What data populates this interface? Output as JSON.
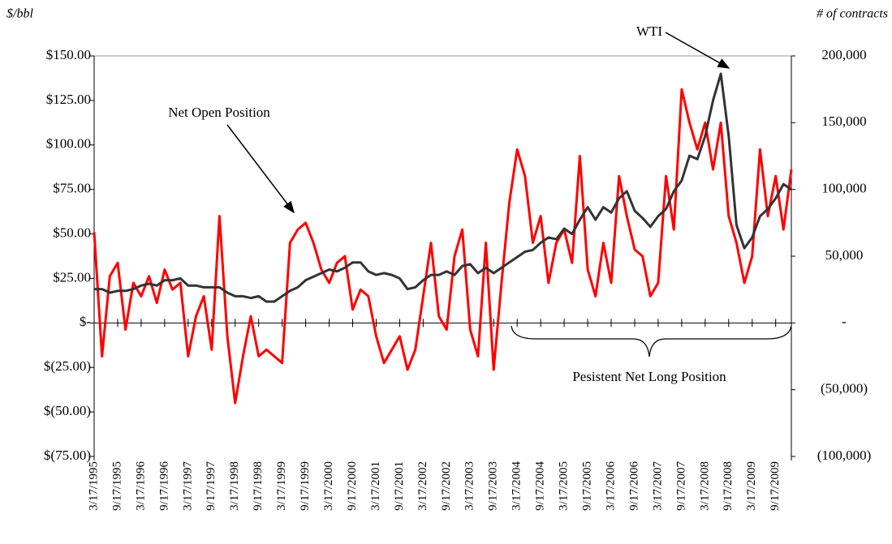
{
  "chart_data": {
    "type": "line",
    "y_label": "$/bbl",
    "y2_label": "# of contracts",
    "annotations": [
      "Pesistent Net Long Position"
    ],
    "categories": [
      "3/17/1995",
      null,
      null,
      "9/17/1995",
      null,
      null,
      "3/17/1996",
      null,
      null,
      "9/17/1996",
      null,
      null,
      "3/17/1997",
      null,
      null,
      "9/17/1997",
      null,
      null,
      "3/17/1998",
      null,
      null,
      "9/17/1998",
      null,
      null,
      "3/17/1999",
      null,
      null,
      "9/17/1999",
      null,
      null,
      "3/17/2000",
      null,
      null,
      "9/17/2000",
      null,
      null,
      "3/17/2001",
      null,
      null,
      "9/17/2001",
      null,
      null,
      "3/17/2002",
      null,
      null,
      "9/17/2002",
      null,
      null,
      "3/17/2003",
      null,
      null,
      "9/17/2003",
      null,
      null,
      "3/17/2004",
      null,
      null,
      "9/17/2004",
      null,
      null,
      "3/17/2005",
      null,
      null,
      "9/17/2005",
      null,
      null,
      "3/17/2006",
      null,
      null,
      "9/17/2006",
      null,
      null,
      "3/17/2007",
      null,
      null,
      "9/17/2007",
      null,
      null,
      "3/17/2008",
      null,
      null,
      "9/17/2008",
      null,
      null,
      "3/17/2009",
      null,
      null,
      "9/17/2009",
      null,
      null
    ],
    "series": [
      {
        "name": "WTI",
        "color": "#333333",
        "axis": "y",
        "values": [
          19,
          19,
          17,
          18,
          18,
          19,
          21,
          22,
          21,
          24,
          24,
          25,
          21,
          21,
          20,
          20,
          20,
          17,
          15,
          15,
          14,
          15,
          12,
          12,
          15,
          18,
          20,
          24,
          26,
          28,
          30,
          29,
          31,
          34,
          34,
          29,
          27,
          28,
          27,
          25,
          19,
          20,
          24,
          27,
          27,
          29,
          27,
          32,
          33,
          28,
          31,
          28,
          31,
          34,
          37,
          40,
          41,
          45,
          48,
          47,
          53,
          50,
          58,
          65,
          58,
          65,
          62,
          70,
          74,
          63,
          59,
          54,
          60,
          64,
          74,
          80,
          94,
          92,
          105,
          125,
          140,
          105,
          55,
          42,
          48,
          60,
          64,
          70,
          78,
          75
        ]
      },
      {
        "name": "Net Open Position",
        "color": "#ff0000",
        "axis": "y2",
        "values": [
          68000,
          -25000,
          35000,
          45000,
          -5000,
          30000,
          20000,
          35000,
          15000,
          40000,
          25000,
          30000,
          -25000,
          5000,
          20000,
          -20000,
          80000,
          -10000,
          -60000,
          -25000,
          5000,
          -25000,
          -20000,
          -25000,
          -30000,
          60000,
          70000,
          75000,
          60000,
          40000,
          30000,
          45000,
          50000,
          10000,
          25000,
          20000,
          -10000,
          -30000,
          -20000,
          -10000,
          -35000,
          -20000,
          20000,
          60000,
          5000,
          -5000,
          50000,
          70000,
          -5000,
          -25000,
          60000,
          -35000,
          30000,
          90000,
          130000,
          110000,
          60000,
          80000,
          30000,
          60000,
          70000,
          45000,
          125000,
          40000,
          20000,
          60000,
          30000,
          110000,
          80000,
          55000,
          50000,
          20000,
          30000,
          110000,
          70000,
          175000,
          150000,
          130000,
          150000,
          115000,
          150000,
          80000,
          60000,
          30000,
          50000,
          130000,
          80000,
          110000,
          70000,
          115000
        ]
      }
    ],
    "ylim": [
      -75,
      150
    ],
    "yticks": [
      {
        "value": -75,
        "label": "$(75.00)"
      },
      {
        "value": -50,
        "label": "$(50.00)"
      },
      {
        "value": -25,
        "label": "$(25.00)"
      },
      {
        "value": 0,
        "label": "$-"
      },
      {
        "value": 25,
        "label": "$25.00"
      },
      {
        "value": 50,
        "label": "$50.00"
      },
      {
        "value": 75,
        "label": "$75.00"
      },
      {
        "value": 100,
        "label": "$100.00"
      },
      {
        "value": 125,
        "label": "$125.00"
      },
      {
        "value": 150,
        "label": "$150.00"
      }
    ],
    "y2lim": [
      -100000,
      200000
    ],
    "y2ticks": [
      {
        "value": -100000,
        "label": "(100,000)"
      },
      {
        "value": -50000,
        "label": "(50,000)"
      },
      {
        "value": 0,
        "label": "-"
      },
      {
        "value": 50000,
        "label": "50,000"
      },
      {
        "value": 100000,
        "label": "100,000"
      },
      {
        "value": 150000,
        "label": "150,000"
      },
      {
        "value": 200000,
        "label": "200,000"
      }
    ]
  }
}
